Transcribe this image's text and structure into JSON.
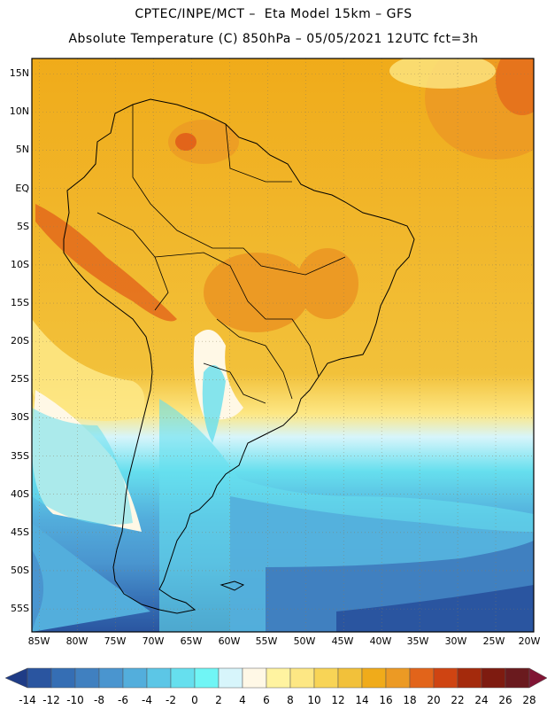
{
  "header": {
    "line1": "CPTEC/INPE/MCT –  Eta Model 15km – GFS",
    "line2": "Absolute Temperature (C) 850hPa – 05/05/2021 12UTC fct=3h"
  },
  "map": {
    "lat_labels": [
      "15N",
      "10N",
      "5N",
      "EQ",
      "5S",
      "10S",
      "15S",
      "20S",
      "25S",
      "30S",
      "35S",
      "40S",
      "45S",
      "50S",
      "55S"
    ],
    "lon_labels": [
      "85W",
      "80W",
      "75W",
      "70W",
      "65W",
      "60W",
      "55W",
      "50W",
      "45W",
      "40W",
      "35W",
      "30W",
      "25W",
      "20W"
    ],
    "extent": {
      "lon": [
        -86,
        -20
      ],
      "lat": [
        -58,
        17
      ]
    },
    "grid": true
  },
  "colorbar": {
    "labels": [
      "-14",
      "-12",
      "-10",
      "-8",
      "-6",
      "-4",
      "-2",
      "0",
      "2",
      "4",
      "6",
      "8",
      "10",
      "12",
      "14",
      "16",
      "18",
      "20",
      "22",
      "24",
      "26",
      "28"
    ],
    "colors": [
      "#1f3c86",
      "#2a55a0",
      "#356eb4",
      "#4080c0",
      "#4a95cf",
      "#53aedc",
      "#5cc6e6",
      "#66dfee",
      "#70f5f5",
      "#d7f5fb",
      "#fff8e6",
      "#fff3a0",
      "#fde784",
      "#f8d456",
      "#f2c13a",
      "#f0ab1a",
      "#ec9a24",
      "#e2641a",
      "#cf4412",
      "#a42a0c",
      "#7e1b10",
      "#6a1a1e",
      "#801434"
    ]
  }
}
